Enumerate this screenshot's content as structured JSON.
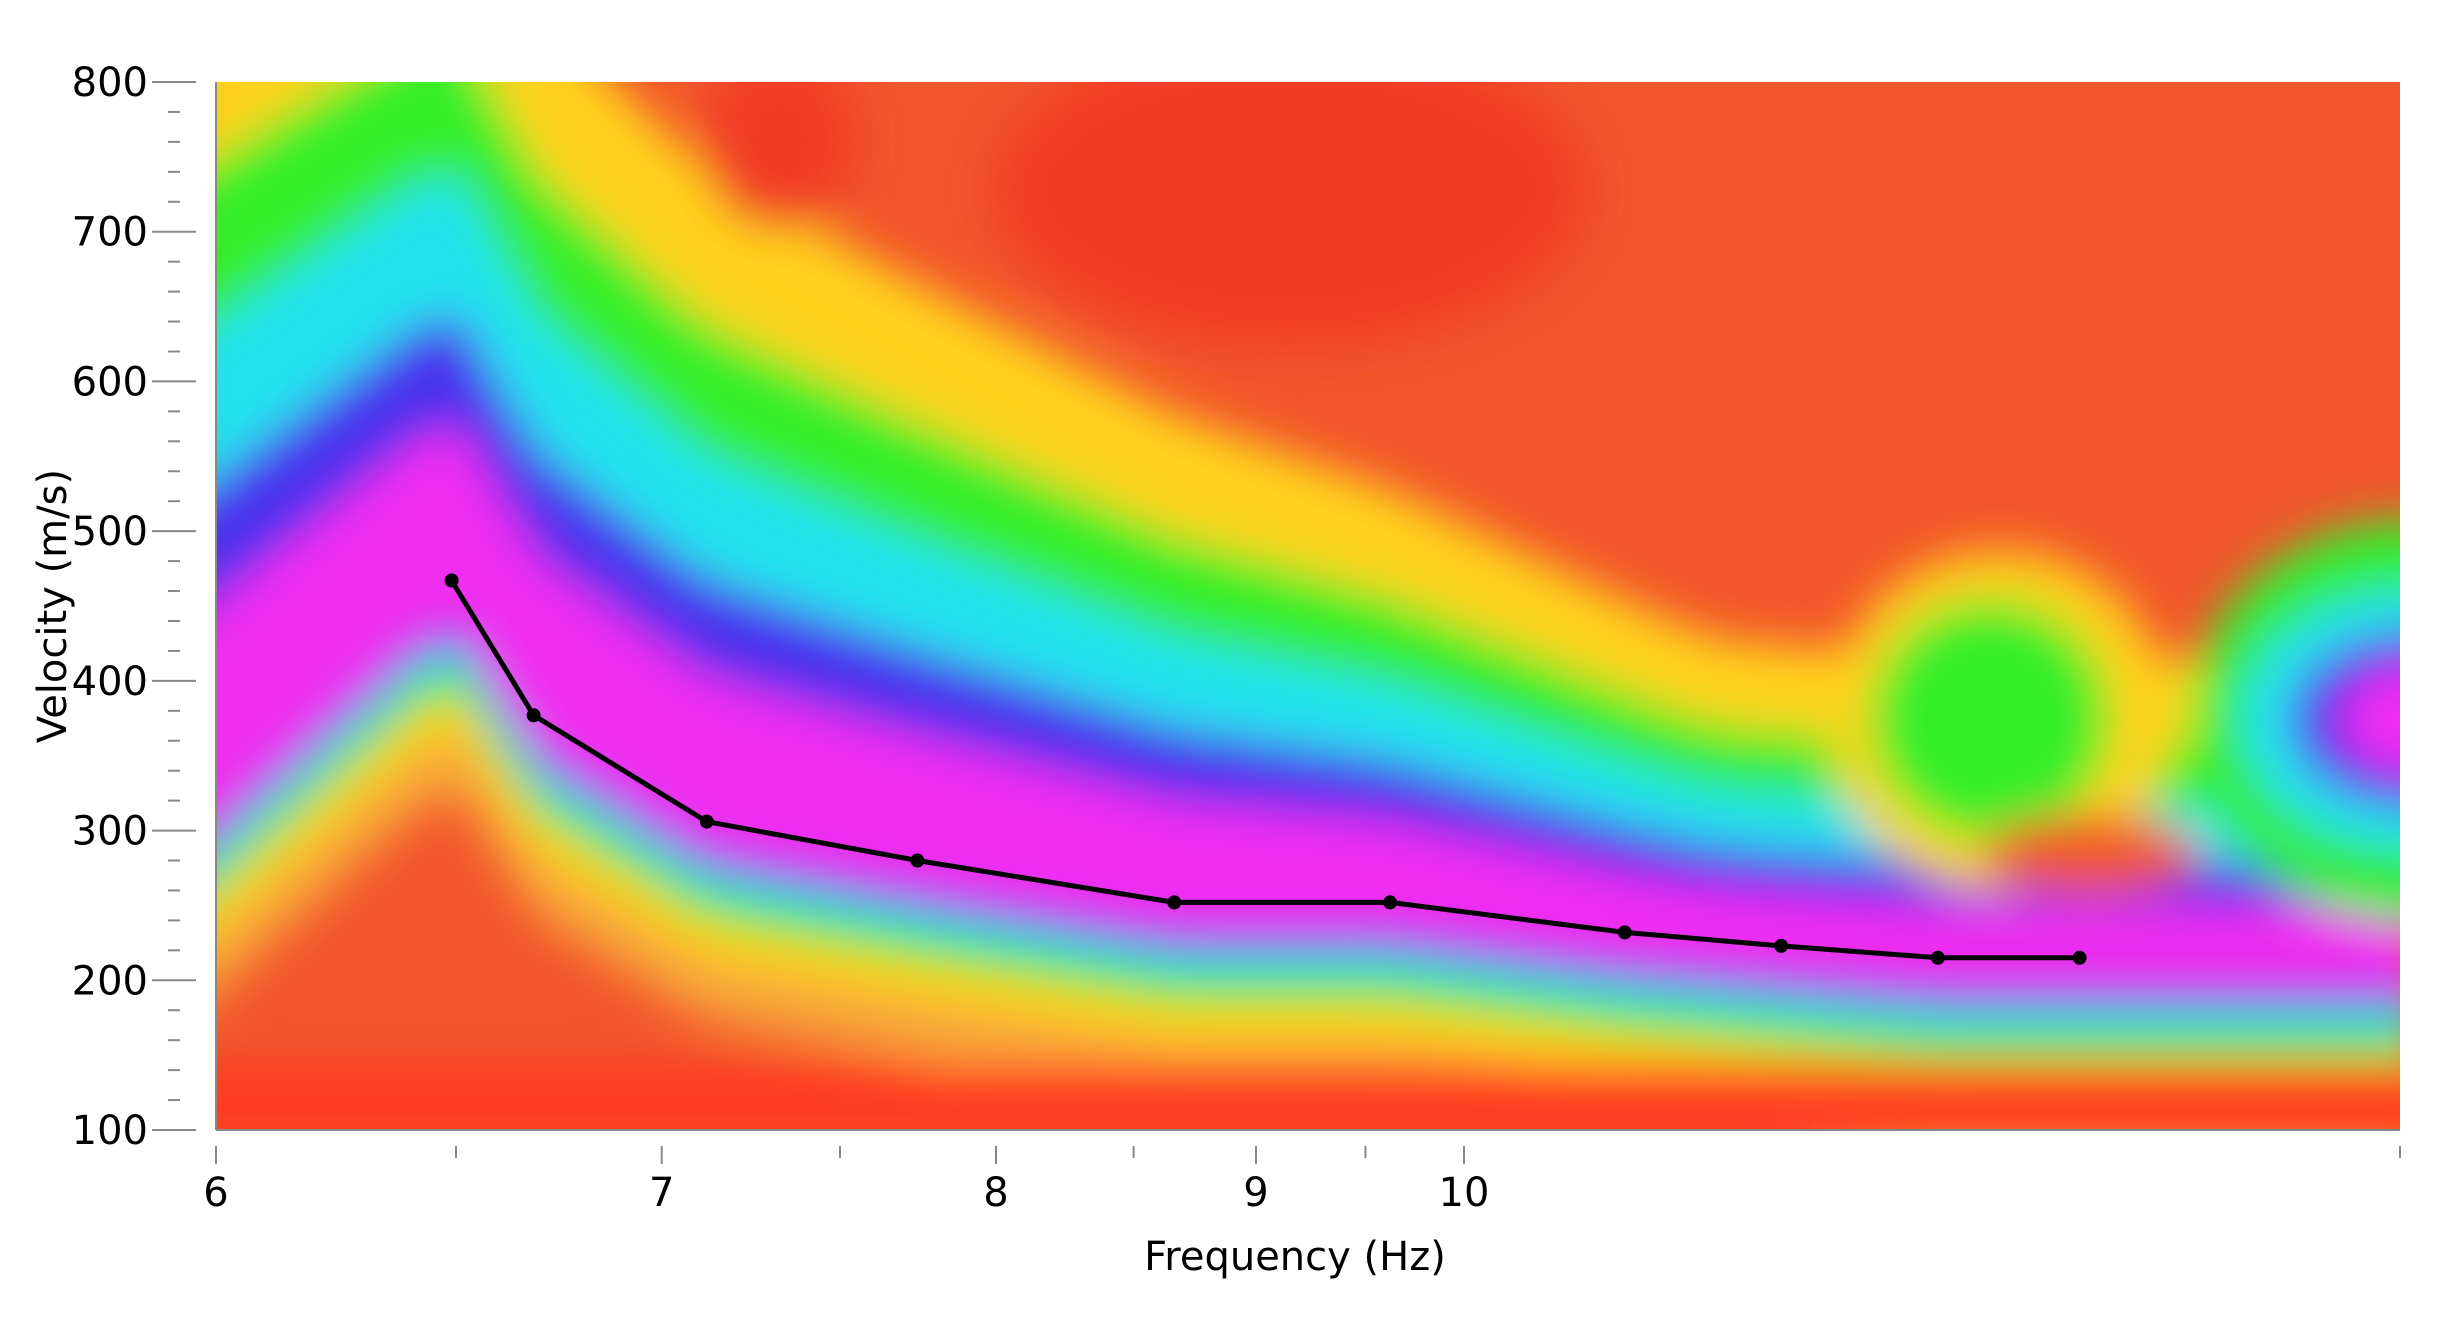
{
  "chart_data": {
    "type": "heatmap",
    "title": "",
    "xlabel": "Frequency (Hz)",
    "ylabel": "Velocity (m/s)",
    "x_scale": "reciprocal",
    "xlim": [
      6,
      20
    ],
    "ylim": [
      100,
      800
    ],
    "x_ticks": [
      6,
      7,
      8,
      9,
      10
    ],
    "y_ticks": [
      100,
      200,
      300,
      400,
      500,
      600,
      700,
      800
    ],
    "grid": false,
    "legend": "none",
    "colormap": [
      "#ff2a1a",
      "#ffd21f",
      "#34ee2a",
      "#20e3ee",
      "#4a32ee",
      "#f02df0"
    ],
    "picked_curve": {
      "x": [
        6.49,
        6.68,
        7.12,
        7.74,
        8.66,
        9.62,
        10.94,
        12.04,
        13.39,
        14.9
      ],
      "y": [
        467,
        377,
        306,
        280,
        252,
        252,
        232,
        223,
        215,
        215
      ],
      "color": "#000000"
    }
  }
}
